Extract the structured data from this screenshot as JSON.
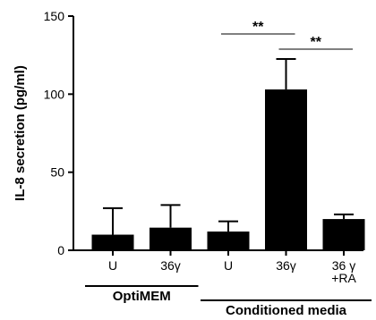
{
  "chart_data": {
    "type": "bar",
    "ylabel": "IL-8 secretion (pg/ml)",
    "ylim": [
      0,
      150
    ],
    "yticks": [
      "0",
      "50",
      "100",
      "150"
    ],
    "categories": [
      "U",
      "36γ",
      "U",
      "36γ",
      "36 γ +RA"
    ],
    "category_lines": [
      [
        "U"
      ],
      [
        "36γ"
      ],
      [
        "U"
      ],
      [
        "36γ"
      ],
      [
        "36 γ",
        "+RA"
      ]
    ],
    "values": [
      10,
      14.5,
      12,
      103,
      20
    ],
    "error_upper": [
      27,
      29,
      18.5,
      122.5,
      23
    ],
    "groups": [
      {
        "label": "OptiMEM",
        "from": 0,
        "to": 1
      },
      {
        "label": "Conditioned media",
        "from": 2,
        "to": 4
      }
    ],
    "significance": [
      {
        "from": 2,
        "to": 3,
        "label": "**"
      },
      {
        "from": 3,
        "to": 4,
        "label": "**"
      }
    ],
    "bar_color": "#000000",
    "grid": false,
    "legend": "none"
  }
}
